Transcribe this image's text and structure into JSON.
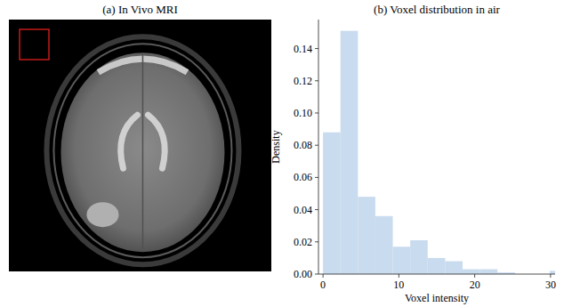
{
  "chart_data": [
    {
      "type": "image",
      "title": "(a) In Vivo MRI"
    },
    {
      "type": "histogram",
      "title": "(b) Voxel distribution in air",
      "x_label": "Voxel intensity",
      "y_label": "Density",
      "bins": [
        0,
        2.3,
        4.6,
        6.9,
        9.2,
        11.5,
        13.8,
        16.1,
        18.4,
        20.7,
        23,
        25.3,
        27.6,
        29.9,
        32.2
      ],
      "values": [
        0.088,
        0.151,
        0.048,
        0.036,
        0.017,
        0.021,
        0.01,
        0.008,
        0.003,
        0.003,
        0.001,
        0,
        0,
        0.002
      ],
      "color": "#c9dbee",
      "xlim": [
        -0.6,
        30.6
      ],
      "xticks": [
        0,
        10,
        20,
        30
      ],
      "ylim": [
        0,
        0.158
      ],
      "yticks": [
        {
          "value": 0,
          "label": "0.00"
        },
        {
          "value": 0.02,
          "label": "0.02"
        },
        {
          "value": 0.04,
          "label": "0.04"
        },
        {
          "value": 0.06,
          "label": "0.06"
        },
        {
          "value": 0.08,
          "label": "0.08"
        },
        {
          "value": 0.1,
          "label": "0.10"
        },
        {
          "value": 0.12,
          "label": "0.12"
        },
        {
          "value": 0.14,
          "label": "0.14"
        }
      ],
      "grid": false
    }
  ]
}
